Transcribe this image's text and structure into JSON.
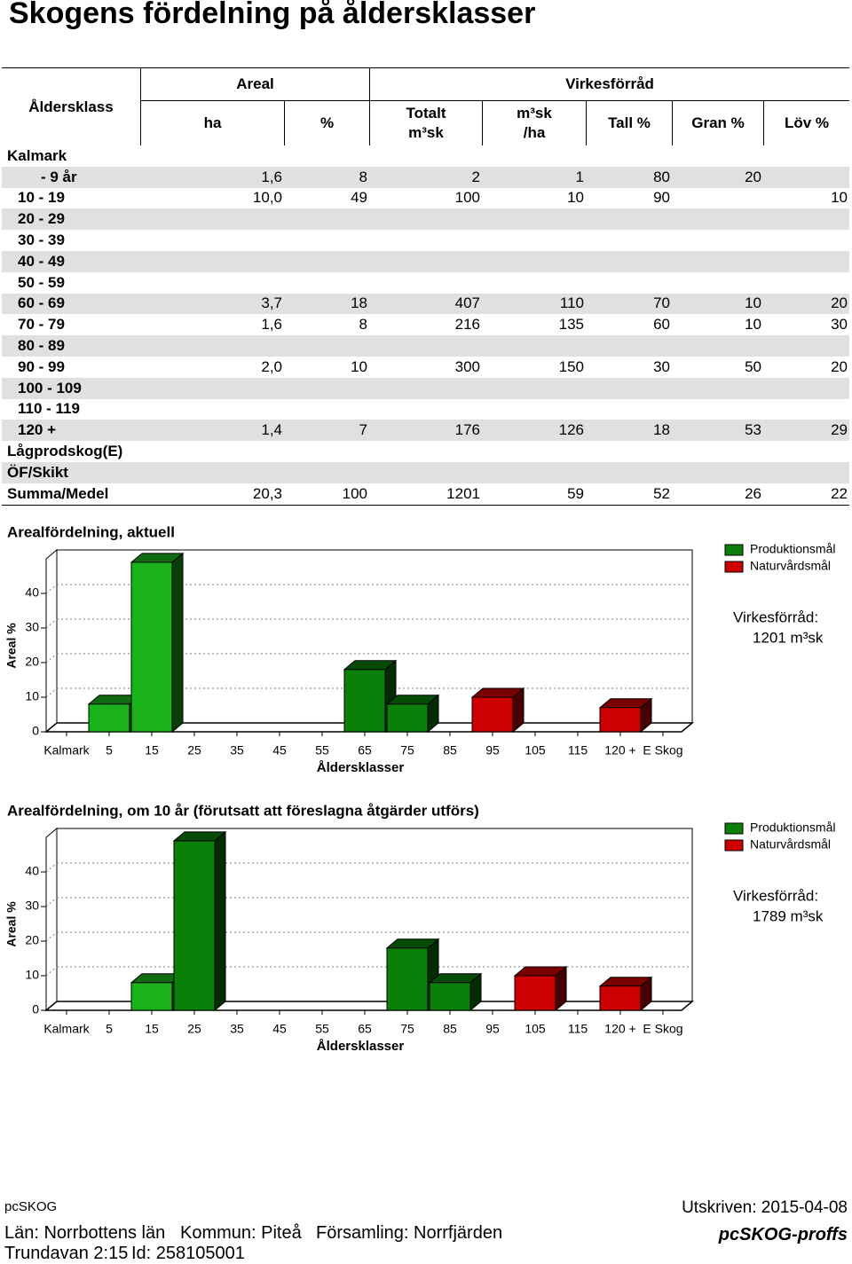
{
  "title": "Skogens fördelning på åldersklasser",
  "table": {
    "header": {
      "age_class": "Åldersklass",
      "areal": "Areal",
      "volume": "Virkesförråd",
      "columns": [
        "ha",
        "%",
        "Totalt\nm³sk",
        "m³sk\n/ha",
        "Tall %",
        "Gran %",
        "Löv %"
      ]
    },
    "rows": [
      [
        "Kalmark",
        null,
        null,
        null,
        null,
        null,
        null,
        null
      ],
      [
        "- 9 år",
        "1,6",
        "8",
        "2",
        "1",
        "80",
        "20",
        null
      ],
      [
        "10 - 19",
        "10,0",
        "49",
        "100",
        "10",
        "90",
        null,
        "10"
      ],
      [
        "20 - 29",
        null,
        null,
        null,
        null,
        null,
        null,
        null
      ],
      [
        "30 - 39",
        null,
        null,
        null,
        null,
        null,
        null,
        null
      ],
      [
        "40 - 49",
        null,
        null,
        null,
        null,
        null,
        null,
        null
      ],
      [
        "50 - 59",
        null,
        null,
        null,
        null,
        null,
        null,
        null
      ],
      [
        "60 - 69",
        "3,7",
        "18",
        "407",
        "110",
        "70",
        "10",
        "20"
      ],
      [
        "70 - 79",
        "1,6",
        "8",
        "216",
        "135",
        "60",
        "10",
        "30"
      ],
      [
        "80 - 89",
        null,
        null,
        null,
        null,
        null,
        null,
        null
      ],
      [
        "90 - 99",
        "2,0",
        "10",
        "300",
        "150",
        "30",
        "50",
        "20"
      ],
      [
        "100 - 109",
        null,
        null,
        null,
        null,
        null,
        null,
        null
      ],
      [
        "110 - 119",
        null,
        null,
        null,
        null,
        null,
        null,
        null
      ],
      [
        "120 +",
        "1,4",
        "7",
        "176",
        "126",
        "18",
        "53",
        "29"
      ],
      [
        "Lågprodskog(E)",
        null,
        null,
        null,
        null,
        null,
        null,
        null
      ],
      [
        "ÖF/Skikt",
        null,
        null,
        null,
        null,
        null,
        null,
        null
      ],
      [
        "Summa/Medel",
        "20,3",
        "100",
        "1201",
        "59",
        "52",
        "26",
        "22"
      ]
    ]
  },
  "chart_data": [
    {
      "type": "bar",
      "title": "Arealfördelning, aktuell",
      "x_label": "Åldersklasser",
      "y_label": "Areal %",
      "categories": [
        "Kalmark",
        "5",
        "15",
        "25",
        "35",
        "45",
        "55",
        "65",
        "75",
        "85",
        "95",
        "105",
        "115",
        "120 +",
        "E Skog"
      ],
      "series": [
        {
          "name": "Produktionsmål",
          "color": "#0a7f0a",
          "values": [
            null,
            8,
            49,
            null,
            null,
            null,
            null,
            18,
            8,
            null,
            null,
            null,
            null,
            null,
            null
          ],
          "point_colors": [
            null,
            "#1ab21a",
            "#1ab21a",
            null,
            null,
            null,
            null,
            "#0a7f0a",
            "#0a7f0a",
            null,
            null,
            null,
            null,
            null,
            null
          ]
        },
        {
          "name": "Naturvårdsmål",
          "color": "#cc0000",
          "values": [
            null,
            null,
            null,
            null,
            null,
            null,
            null,
            null,
            null,
            null,
            10,
            null,
            null,
            7,
            null
          ]
        }
      ],
      "ylim": [
        0,
        50
      ],
      "yticks": [
        0,
        10,
        20,
        30,
        40
      ],
      "grid": true,
      "legend": "right",
      "annotations": [
        "Virkesförråd:",
        "1201 m³sk"
      ]
    },
    {
      "type": "bar",
      "title": "Arealfördelning, om 10 år (förutsatt att föreslagna åtgärder utförs)",
      "x_label": "Åldersklasser",
      "y_label": "Areal %",
      "categories": [
        "Kalmark",
        "5",
        "15",
        "25",
        "35",
        "45",
        "55",
        "65",
        "75",
        "85",
        "95",
        "105",
        "115",
        "120 +",
        "E Skog"
      ],
      "series": [
        {
          "name": "Produktionsmål",
          "color": "#0a7f0a",
          "values": [
            null,
            null,
            8,
            49,
            null,
            null,
            null,
            null,
            18,
            8,
            null,
            null,
            null,
            null,
            null
          ],
          "point_colors": [
            null,
            null,
            "#1ab21a",
            "#0a7f0a",
            null,
            null,
            null,
            null,
            "#0a7f0a",
            "#0a7f0a",
            null,
            null,
            null,
            null,
            null
          ]
        },
        {
          "name": "Naturvårdsmål",
          "color": "#cc0000",
          "values": [
            null,
            null,
            null,
            null,
            null,
            null,
            null,
            null,
            null,
            null,
            null,
            10,
            null,
            7,
            null
          ]
        }
      ],
      "ylim": [
        0,
        50
      ],
      "yticks": [
        0,
        10,
        20,
        30,
        40
      ],
      "grid": true,
      "legend": "right",
      "annotations": [
        "Virkesförråd:",
        "1789 m³sk"
      ]
    }
  ],
  "footer": {
    "app": "pcSKOG",
    "printed": "Utskriven: 2015-04-08",
    "county": "Län: Norrbottens län",
    "municipality": "Kommun: Piteå",
    "parish": "Församling: Norrfjärden",
    "property": "Trundavan 2:15",
    "id": "Id: 258105001",
    "logo": "pcSKOG-proffs"
  }
}
